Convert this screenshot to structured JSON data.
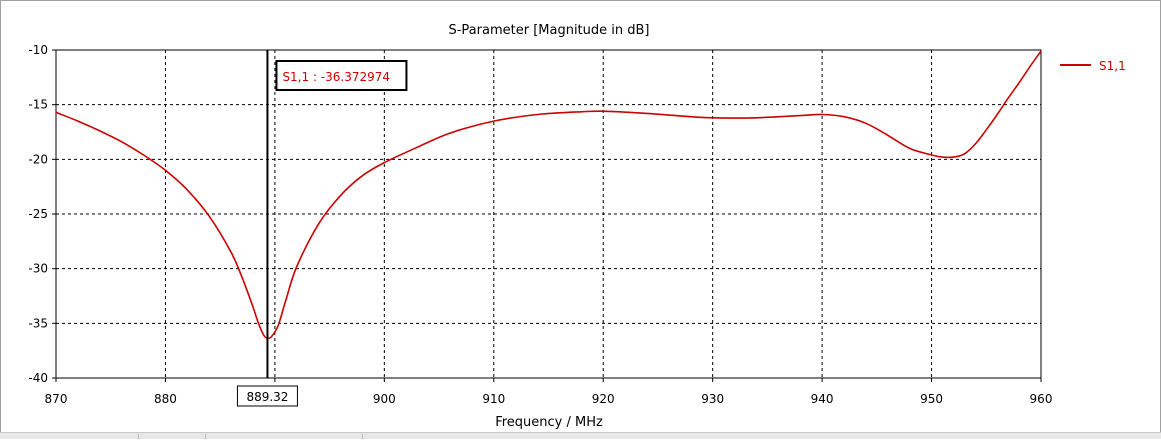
{
  "chart_data": {
    "type": "line",
    "title": "S-Parameter [Magnitude in dB]",
    "xlabel": "Frequency / MHz",
    "ylabel": "",
    "xlim": [
      870,
      960
    ],
    "ylim": [
      -40,
      -10
    ],
    "xticks": [
      870,
      880,
      890,
      900,
      910,
      920,
      930,
      940,
      950,
      960
    ],
    "yticks": [
      -10,
      -15,
      -20,
      -25,
      -30,
      -35,
      -40
    ],
    "grid": true,
    "legend_position": "right",
    "series": [
      {
        "name": "S1,1",
        "color": "#cc0000",
        "x": [
          870,
          872,
          874,
          876,
          878,
          880,
          882,
          884,
          886,
          887,
          888,
          888.5,
          889,
          889.32,
          889.7,
          890.3,
          891,
          892,
          894,
          896,
          898,
          900,
          903,
          906,
          910,
          914,
          918,
          920,
          924,
          928,
          930,
          934,
          938,
          940,
          942,
          944,
          946,
          948,
          950,
          951,
          952,
          953,
          954,
          955,
          956,
          957,
          958,
          959,
          960
        ],
        "y": [
          -15.7,
          -16.5,
          -17.4,
          -18.4,
          -19.6,
          -21.0,
          -22.8,
          -25.2,
          -28.5,
          -30.8,
          -33.5,
          -35.0,
          -36.1,
          -36.37,
          -36.2,
          -35.2,
          -32.9,
          -29.8,
          -25.9,
          -23.3,
          -21.5,
          -20.3,
          -18.9,
          -17.6,
          -16.5,
          -15.9,
          -15.65,
          -15.6,
          -15.8,
          -16.1,
          -16.2,
          -16.2,
          -16.0,
          -15.9,
          -16.1,
          -16.7,
          -17.8,
          -19.0,
          -19.6,
          -19.8,
          -19.8,
          -19.5,
          -18.6,
          -17.3,
          -15.9,
          -14.4,
          -13.0,
          -11.5,
          -10.1
        ]
      }
    ],
    "marker": {
      "x": 889.32,
      "x_label": "889.32",
      "readout": "S1,1 : -36.372974"
    }
  }
}
